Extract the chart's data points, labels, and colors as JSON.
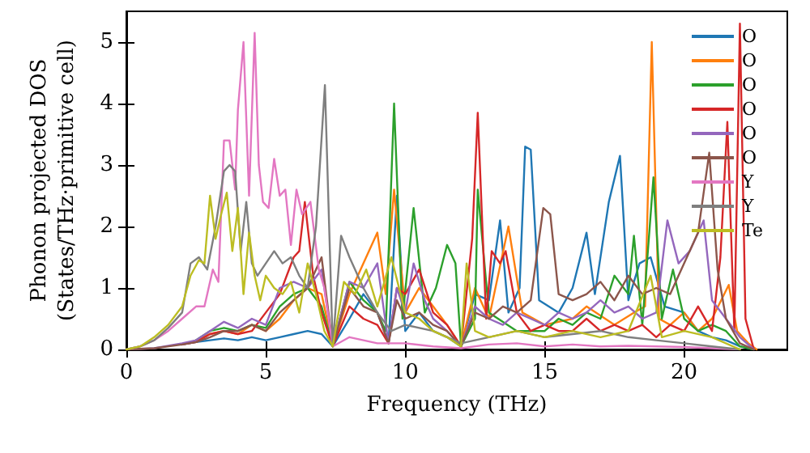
{
  "chart_data": {
    "type": "line",
    "xlabel": "Frequency (THz)",
    "ylabel": "Phonon projected DOS\n(States/THz·primitive cell)",
    "xlim": [
      0,
      23.7
    ],
    "ylim": [
      0,
      5.5
    ],
    "xticks": [
      0,
      5,
      10,
      15,
      20
    ],
    "yticks": [
      0,
      1,
      2,
      3,
      4,
      5
    ],
    "legend": "top right",
    "grid": false,
    "series": [
      {
        "name": "O",
        "color": "#1f77b4",
        "x": [
          2,
          2.5,
          3,
          3.5,
          4,
          4.5,
          5,
          5.5,
          6,
          6.5,
          7,
          7.4,
          8,
          8.5,
          9,
          9.4,
          9.7,
          10,
          10.5,
          11,
          11.5,
          12,
          12.5,
          13,
          13.4,
          13.7,
          14.1,
          14.3,
          14.5,
          14.8,
          15.5,
          16,
          16.5,
          16.8,
          17.3,
          17.7,
          18,
          18.4,
          18.8,
          19.3,
          20,
          20.5,
          21,
          21.5,
          22,
          22.5
        ],
        "values": [
          0.08,
          0.12,
          0.15,
          0.18,
          0.15,
          0.2,
          0.15,
          0.2,
          0.25,
          0.3,
          0.25,
          0.05,
          0.5,
          0.9,
          0.6,
          0.1,
          2.5,
          0.3,
          0.6,
          0.3,
          0.2,
          0.05,
          0.9,
          0.8,
          2.1,
          0.6,
          1.0,
          3.3,
          3.25,
          0.8,
          0.6,
          1.0,
          1.9,
          0.9,
          2.4,
          3.15,
          0.8,
          1.4,
          1.5,
          0.7,
          0.6,
          0.3,
          0.2,
          0.15,
          0.05,
          0
        ]
      },
      {
        "name": "O",
        "color": "#ff7f0e",
        "x": [
          2.5,
          3,
          3.5,
          4,
          4.5,
          5,
          5.5,
          6,
          6.5,
          7,
          7.4,
          8,
          8.5,
          9,
          9.3,
          9.6,
          10,
          10.5,
          11,
          11.5,
          12,
          12.5,
          13,
          13.7,
          14.2,
          15,
          16,
          16.5,
          17.5,
          18.2,
          18.6,
          18.84,
          19.1,
          19.5,
          20,
          20.5,
          21,
          21.6,
          21.9,
          22.3,
          22.6
        ],
        "values": [
          0.15,
          0.25,
          0.3,
          0.25,
          0.4,
          0.3,
          0.5,
          0.8,
          1.0,
          0.9,
          0.05,
          0.9,
          1.4,
          1.9,
          0.9,
          2.6,
          0.6,
          1.0,
          0.7,
          0.4,
          0.05,
          1.0,
          0.5,
          2.0,
          0.6,
          0.4,
          0.5,
          0.7,
          0.4,
          0.6,
          0.7,
          5.0,
          0.5,
          0.4,
          0.6,
          0.3,
          0.5,
          1.05,
          0.3,
          0.1,
          0
        ]
      },
      {
        "name": "O",
        "color": "#2ca02c",
        "x": [
          2.5,
          3,
          3.5,
          4,
          4.5,
          5,
          5.5,
          6,
          6.5,
          7,
          7.4,
          8,
          8.5,
          9,
          9.3,
          9.6,
          9.9,
          10.3,
          10.7,
          11.1,
          11.5,
          11.8,
          12,
          12.5,
          12.6,
          13,
          14,
          15,
          15.5,
          16,
          16.5,
          17,
          17.5,
          18,
          18.2,
          18.5,
          18.9,
          19.2,
          19.6,
          20,
          20.5,
          21,
          21.5,
          22,
          22.5
        ],
        "values": [
          0.15,
          0.3,
          0.35,
          0.3,
          0.4,
          0.35,
          0.7,
          0.9,
          1.0,
          0.7,
          0.05,
          1.1,
          0.8,
          0.6,
          0.3,
          4.0,
          0.5,
          2.3,
          0.6,
          1.0,
          1.7,
          1.4,
          0.05,
          0.5,
          2.6,
          0.6,
          0.3,
          0.3,
          0.5,
          0.4,
          0.6,
          0.5,
          1.2,
          0.9,
          1.85,
          0.4,
          2.8,
          0.5,
          1.3,
          0.5,
          0.3,
          0.4,
          0.3,
          0.05,
          0
        ]
      },
      {
        "name": "O",
        "color": "#d62728",
        "x": [
          2,
          2.5,
          3,
          3.5,
          4,
          4.5,
          5,
          5.5,
          6,
          6.2,
          6.4,
          6.7,
          7,
          7.4,
          8,
          8.5,
          9,
          9.4,
          9.7,
          10,
          10.5,
          11,
          11.5,
          12,
          12.4,
          12.6,
          12.9,
          13.1,
          13.4,
          13.6,
          14,
          14.5,
          15,
          15.5,
          16,
          16.5,
          17,
          17.5,
          18,
          18.5,
          19,
          19.5,
          20,
          20.5,
          21,
          21.3,
          21.55,
          21.8,
          22,
          22.2,
          22.5
        ],
        "values": [
          0.08,
          0.12,
          0.25,
          0.3,
          0.25,
          0.3,
          0.6,
          0.9,
          1.5,
          1.6,
          2.4,
          1.2,
          0.6,
          0.05,
          0.7,
          0.5,
          0.4,
          0.1,
          1.0,
          0.9,
          1.3,
          0.6,
          0.4,
          0.05,
          1.8,
          3.85,
          0.5,
          1.6,
          1.4,
          1.6,
          0.6,
          0.3,
          0.4,
          0.3,
          0.3,
          0.5,
          0.3,
          0.4,
          0.3,
          0.4,
          0.2,
          0.4,
          0.3,
          0.7,
          0.3,
          1.5,
          3.7,
          0.3,
          5.3,
          0.5,
          0
        ]
      },
      {
        "name": "O",
        "color": "#9467bd",
        "x": [
          0,
          1,
          2,
          2.5,
          3,
          3.5,
          4,
          4.5,
          5,
          5.5,
          6,
          6.5,
          7,
          7.4,
          8,
          8.5,
          9,
          9.4,
          9.7,
          10,
          10.3,
          10.7,
          11,
          11.5,
          12,
          12.5,
          13,
          13.5,
          14,
          14.5,
          15,
          15.5,
          16,
          16.5,
          17,
          17.5,
          18,
          18.5,
          19,
          19.4,
          19.8,
          20.2,
          20.7,
          21,
          21.5,
          22,
          22.5
        ],
        "values": [
          0,
          0.02,
          0.1,
          0.15,
          0.3,
          0.45,
          0.35,
          0.5,
          0.4,
          1.0,
          1.1,
          1.0,
          1.3,
          0.05,
          1.1,
          1.0,
          1.4,
          0.1,
          1.0,
          0.6,
          1.4,
          0.8,
          0.5,
          0.3,
          0.05,
          0.7,
          0.5,
          0.4,
          0.6,
          0.5,
          0.4,
          0.6,
          0.5,
          0.6,
          0.8,
          0.6,
          0.7,
          0.5,
          0.6,
          2.1,
          1.4,
          1.6,
          2.1,
          0.8,
          0.5,
          0.2,
          0
        ]
      },
      {
        "name": "O",
        "color": "#8c564b",
        "x": [
          0,
          1,
          2,
          2.5,
          3,
          3.5,
          4,
          4.5,
          5,
          5.5,
          6,
          6.5,
          7,
          7.4,
          8,
          8.5,
          9,
          9.4,
          9.7,
          10,
          10.5,
          11,
          11.5,
          12,
          12.5,
          13,
          13.5,
          14,
          14.5,
          14.95,
          15.2,
          15.5,
          16,
          16.5,
          17,
          17.5,
          18,
          18.5,
          19,
          19.5,
          20,
          20.5,
          20.9,
          21.2,
          21.5,
          22,
          22.5
        ],
        "values": [
          0,
          0.02,
          0.08,
          0.12,
          0.2,
          0.3,
          0.3,
          0.4,
          0.3,
          0.6,
          0.8,
          1.0,
          1.5,
          0.05,
          1.0,
          0.7,
          0.6,
          0.1,
          0.8,
          0.5,
          0.6,
          0.4,
          0.3,
          0.05,
          0.6,
          0.5,
          0.7,
          0.6,
          0.8,
          2.3,
          2.2,
          0.9,
          0.8,
          0.9,
          1.1,
          0.8,
          1.2,
          0.9,
          1.0,
          0.9,
          1.4,
          1.9,
          3.2,
          1.3,
          0.5,
          0.1,
          0
        ]
      },
      {
        "name": "Y",
        "color": "#e377c2",
        "x": [
          0,
          0.5,
          1,
          1.5,
          2,
          2.5,
          2.8,
          3.1,
          3.3,
          3.5,
          3.7,
          3.9,
          4.0,
          4.2,
          4.4,
          4.6,
          4.75,
          4.9,
          5.1,
          5.3,
          5.5,
          5.7,
          5.9,
          6.1,
          6.3,
          6.6,
          6.9,
          7.1,
          7.4,
          8,
          9,
          10,
          11,
          12,
          13,
          14,
          15,
          16,
          17,
          18,
          19,
          20,
          21,
          22
        ],
        "values": [
          0,
          0.05,
          0.15,
          0.3,
          0.5,
          0.7,
          0.7,
          1.3,
          1.1,
          3.4,
          3.4,
          2.6,
          3.9,
          5.0,
          2.5,
          5.15,
          3.0,
          2.4,
          2.3,
          3.1,
          2.5,
          2.6,
          1.7,
          2.6,
          2.2,
          2.4,
          1.3,
          1.0,
          0.05,
          0.2,
          0.1,
          0.1,
          0.05,
          0.02,
          0.08,
          0.1,
          0.05,
          0.08,
          0.05,
          0.06,
          0.05,
          0.04,
          0.02,
          0
        ]
      },
      {
        "name": "Y",
        "color": "#7f7f7f",
        "x": [
          0,
          0.5,
          1,
          1.5,
          2,
          2.3,
          2.6,
          2.9,
          3.2,
          3.5,
          3.7,
          3.9,
          4.1,
          4.3,
          4.5,
          4.7,
          5,
          5.3,
          5.6,
          5.9,
          6.2,
          6.5,
          6.8,
          7.12,
          7.4,
          7.7,
          8,
          8.5,
          9,
          9.5,
          10,
          11,
          12,
          13,
          14,
          15,
          16,
          17,
          18,
          19,
          20,
          21,
          22
        ],
        "values": [
          0,
          0.05,
          0.15,
          0.35,
          0.6,
          1.4,
          1.5,
          1.3,
          2.0,
          2.9,
          3.0,
          2.9,
          1.6,
          2.4,
          1.4,
          1.2,
          1.4,
          1.6,
          1.4,
          1.5,
          1.2,
          1.0,
          2.0,
          4.3,
          0.05,
          1.85,
          1.5,
          1.0,
          0.6,
          0.3,
          0.4,
          0.3,
          0.1,
          0.2,
          0.3,
          0.2,
          0.25,
          0.3,
          0.2,
          0.15,
          0.1,
          0.05,
          0
        ]
      },
      {
        "name": "Te",
        "color": "#bcbd22",
        "x": [
          0,
          0.5,
          1,
          1.5,
          2,
          2.3,
          2.6,
          2.8,
          3.0,
          3.2,
          3.4,
          3.6,
          3.8,
          4.0,
          4.2,
          4.4,
          4.6,
          4.8,
          5.0,
          5.3,
          5.6,
          5.9,
          6.2,
          6.5,
          6.8,
          7.1,
          7.4,
          7.8,
          8.2,
          8.6,
          9,
          9.5,
          10,
          10.5,
          11,
          11.5,
          12,
          12.2,
          12.5,
          13,
          14,
          15,
          16,
          17,
          18,
          18.8,
          19.2,
          20,
          21,
          22
        ],
        "values": [
          0,
          0.05,
          0.2,
          0.4,
          0.7,
          1.2,
          1.45,
          1.4,
          2.5,
          1.8,
          2.2,
          2.55,
          1.6,
          2.3,
          0.9,
          1.9,
          1.2,
          0.8,
          1.2,
          1.0,
          0.9,
          1.1,
          0.6,
          1.4,
          0.9,
          0.3,
          0.05,
          1.1,
          0.9,
          1.3,
          0.7,
          1.5,
          0.6,
          0.5,
          0.3,
          0.2,
          0.05,
          1.4,
          0.3,
          0.2,
          0.3,
          0.2,
          0.3,
          0.2,
          0.3,
          1.2,
          0.2,
          0.3,
          0.2,
          0
        ]
      }
    ]
  }
}
